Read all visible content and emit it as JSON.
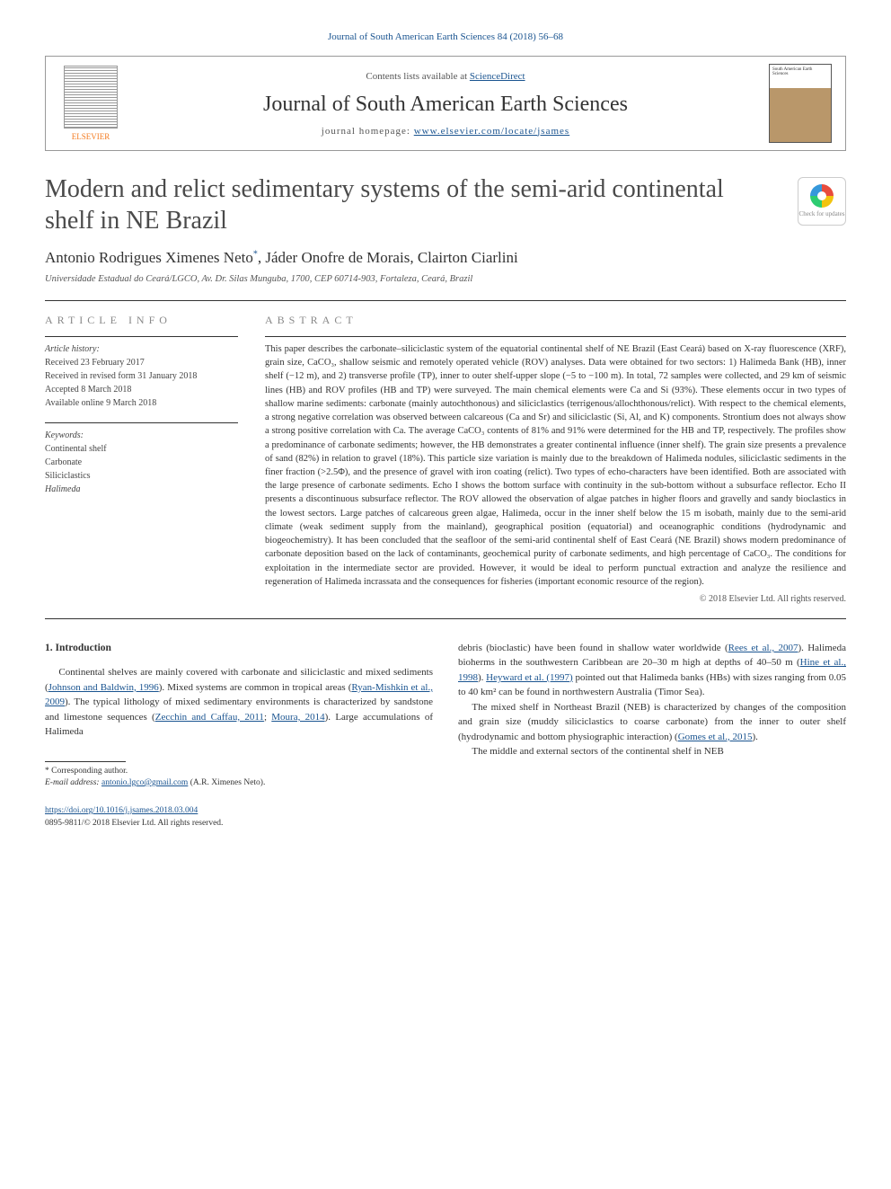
{
  "citation": "Journal of South American Earth Sciences 84 (2018) 56–68",
  "header": {
    "contents_prefix": "Contents lists available at ",
    "contents_link": "ScienceDirect",
    "journal": "Journal of South American Earth Sciences",
    "homepage_prefix": "journal homepage: ",
    "homepage_url": "www.elsevier.com/locate/jsames",
    "publisher": "ELSEVIER",
    "cover_label": "South American Earth Sciences"
  },
  "crossmark": "Check for updates",
  "title": "Modern and relict sedimentary systems of the semi-arid continental shelf in NE Brazil",
  "authors": "Antonio Rodrigues Ximenes Neto*, Jáder Onofre de Morais, Clairton Ciarlini",
  "affiliation": "Universidade Estadual do Ceará/LGCO, Av. Dr. Silas Munguba, 1700, CEP 60714-903, Fortaleza, Ceará, Brazil",
  "article_info_heading": "ARTICLE INFO",
  "abstract_heading": "ABSTRACT",
  "history": {
    "label": "Article history:",
    "received": "Received 23 February 2017",
    "revised": "Received in revised form 31 January 2018",
    "accepted": "Accepted 8 March 2018",
    "online": "Available online 9 March 2018"
  },
  "keywords": {
    "label": "Keywords:",
    "items": [
      "Continental shelf",
      "Carbonate",
      "Siliciclastics",
      "Halimeda"
    ]
  },
  "abstract": "This paper describes the carbonate–siliciclastic system of the equatorial continental shelf of NE Brazil (East Ceará) based on X-ray fluorescence (XRF), grain size, CaCO₃, shallow seismic and remotely operated vehicle (ROV) analyses. Data were obtained for two sectors: 1) Halimeda Bank (HB), inner shelf (−12 m), and 2) transverse profile (TP), inner to outer shelf-upper slope (−5 to −100 m). In total, 72 samples were collected, and 29 km of seismic lines (HB) and ROV profiles (HB and TP) were surveyed. The main chemical elements were Ca and Si (93%). These elements occur in two types of shallow marine sediments: carbonate (mainly autochthonous) and siliciclastics (terrigenous/allochthonous/relict). With respect to the chemical elements, a strong negative correlation was observed between calcareous (Ca and Sr) and siliciclastic (Si, Al, and K) components. Strontium does not always show a strong positive correlation with Ca. The average CaCO₃ contents of 81% and 91% were determined for the HB and TP, respectively. The profiles show a predominance of carbonate sediments; however, the HB demonstrates a greater continental influence (inner shelf). The grain size presents a prevalence of sand (82%) in relation to gravel (18%). This particle size variation is mainly due to the breakdown of Halimeda nodules, siliciclastic sediments in the finer fraction (>2.5Φ), and the presence of gravel with iron coating (relict). Two types of echo-characters have been identified. Both are associated with the large presence of carbonate sediments. Echo I shows the bottom surface with continuity in the sub-bottom without a subsurface reflector. Echo II presents a discontinuous subsurface reflector. The ROV allowed the observation of algae patches in higher floors and gravelly and sandy bioclastics in the lowest sectors. Large patches of calcareous green algae, Halimeda, occur in the inner shelf below the 15 m isobath, mainly due to the semi-arid climate (weak sediment supply from the mainland), geographical position (equatorial) and oceanographic conditions (hydrodynamic and biogeochemistry). It has been concluded that the seafloor of the semi-arid continental shelf of East Ceará (NE Brazil) shows modern predominance of carbonate deposition based on the lack of contaminants, geochemical purity of carbonate sediments, and high percentage of CaCO₃. The conditions for exploitation in the intermediate sector are provided. However, it would be ideal to perform punctual extraction and analyze the resilience and regeneration of Halimeda incrassata and the consequences for fisheries (important economic resource of the region).",
  "copyright": "© 2018 Elsevier Ltd. All rights reserved.",
  "intro": {
    "heading": "1. Introduction",
    "col1_p1_a": "Continental shelves are mainly covered with carbonate and siliciclastic and mixed sediments (",
    "col1_p1_link1": "Johnson and Baldwin, 1996",
    "col1_p1_b": "). Mixed systems are common in tropical areas (",
    "col1_p1_link2": "Ryan-Mishkin et al., 2009",
    "col1_p1_c": "). The typical lithology of mixed sedimentary environments is characterized by sandstone and limestone sequences (",
    "col1_p1_link3": "Zecchin and Caffau, 2011",
    "col1_p1_d": "; ",
    "col1_p1_link4": "Moura, 2014",
    "col1_p1_e": "). Large accumulations of Halimeda",
    "col2_p1_a": "debris (bioclastic) have been found in shallow water worldwide (",
    "col2_p1_link1": "Rees et al., 2007",
    "col2_p1_b": "). Halimeda bioherms in the southwestern Caribbean are 20–30 m high at depths of 40–50 m (",
    "col2_p1_link2": "Hine et al., 1998",
    "col2_p1_c": "). ",
    "col2_p1_link3": "Heyward et al. (1997)",
    "col2_p1_d": " pointed out that Halimeda banks (HBs) with sizes ranging from 0.05 to 40 km² can be found in northwestern Australia (Timor Sea).",
    "col2_p2_a": "The mixed shelf in Northeast Brazil (NEB) is characterized by changes of the composition and grain size (muddy siliciclastics to coarse carbonate) from the inner to outer shelf (hydrodynamic and bottom physiographic interaction) (",
    "col2_p2_link1": "Gomes et al., 2015",
    "col2_p2_b": ").",
    "col2_p3": "The middle and external sectors of the continental shelf in NEB"
  },
  "footnote": {
    "corr": "* Corresponding author.",
    "email_label": "E-mail address: ",
    "email": "antonio.lgco@gmail.com",
    "email_suffix": " (A.R. Ximenes Neto)."
  },
  "footer": {
    "doi": "https://doi.org/10.1016/j.jsames.2018.03.004",
    "issn_line": "0895-9811/© 2018 Elsevier Ltd. All rights reserved."
  }
}
